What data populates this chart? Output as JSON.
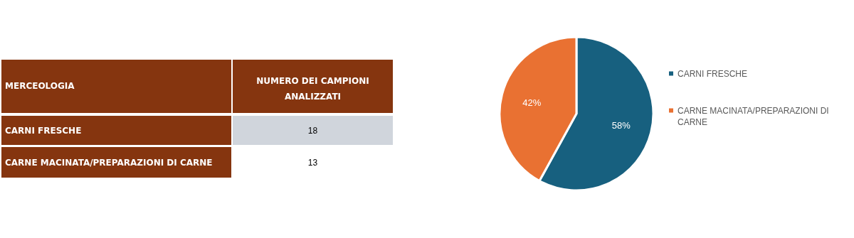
{
  "chart_data": {
    "type": "pie",
    "categories": [
      "CARNI FRESCHE",
      "CARNE MACINATA/PREPARAZIONI DI CARNE"
    ],
    "values": [
      58,
      42
    ],
    "colors": [
      "#17607f",
      "#e97132"
    ],
    "value_labels": [
      "58%",
      "42%"
    ],
    "legend": "right",
    "annotations": [
      "MERCEOLOGIA",
      "NUMERO DEI CAMPIONI ANALIZZATI",
      "18",
      "13"
    ]
  }
}
